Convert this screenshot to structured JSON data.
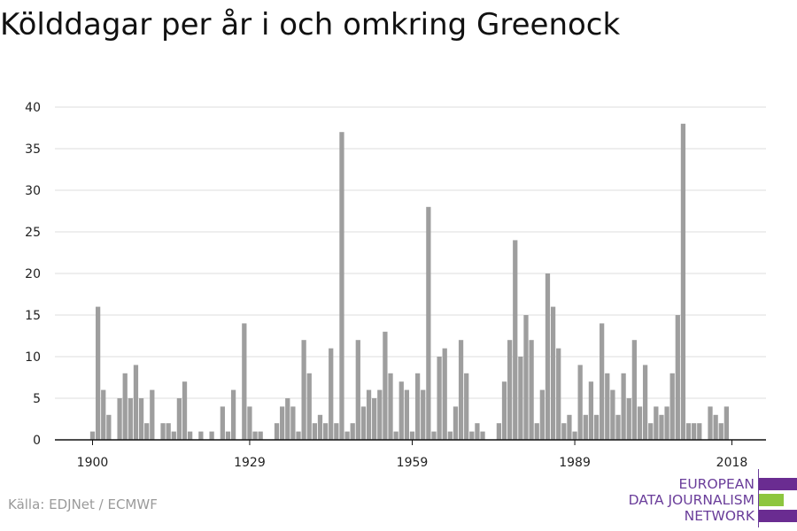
{
  "title": "Kölddagar per år i och omkring Greenock",
  "source": "Källa: EDJNet / ECMWF",
  "logo": {
    "lines": [
      "EUROPEAN",
      "DATA JOURNALISM",
      "NETWORK"
    ],
    "bar_colors": [
      "#6a2c91",
      "#8dc63f",
      "#6a2c91"
    ]
  },
  "colors": {
    "bar": "#9e9e9e",
    "grid": "#dddddd",
    "axis": "#111111",
    "text": "#222222"
  },
  "chart_data": {
    "type": "bar",
    "title": "Kölddagar per år i och omkring Greenock",
    "xlabel": "",
    "ylabel": "",
    "ylim": [
      0,
      40
    ],
    "yticks": [
      0,
      5,
      10,
      15,
      20,
      25,
      30,
      35,
      40
    ],
    "xticks": [
      1900,
      1929,
      1959,
      1989,
      2018
    ],
    "grid": true,
    "x": [
      1900,
      1901,
      1902,
      1903,
      1904,
      1905,
      1906,
      1907,
      1908,
      1909,
      1910,
      1911,
      1912,
      1913,
      1914,
      1915,
      1916,
      1917,
      1918,
      1919,
      1920,
      1921,
      1922,
      1923,
      1924,
      1925,
      1926,
      1927,
      1928,
      1929,
      1930,
      1931,
      1932,
      1933,
      1934,
      1935,
      1936,
      1937,
      1938,
      1939,
      1940,
      1941,
      1942,
      1943,
      1944,
      1945,
      1946,
      1947,
      1948,
      1949,
      1950,
      1951,
      1952,
      1953,
      1954,
      1955,
      1956,
      1957,
      1958,
      1959,
      1960,
      1961,
      1962,
      1963,
      1964,
      1965,
      1966,
      1967,
      1968,
      1969,
      1970,
      1971,
      1972,
      1973,
      1974,
      1975,
      1976,
      1977,
      1978,
      1979,
      1980,
      1981,
      1982,
      1983,
      1984,
      1985,
      1986,
      1987,
      1988,
      1989,
      1990,
      1991,
      1992,
      1993,
      1994,
      1995,
      1996,
      1997,
      1998,
      1999,
      2000,
      2001,
      2002,
      2003,
      2004,
      2005,
      2006,
      2007,
      2008,
      2009,
      2010,
      2011,
      2012,
      2013,
      2014,
      2015,
      2016,
      2017,
      2018
    ],
    "values": [
      1,
      16,
      6,
      3,
      0,
      5,
      8,
      5,
      9,
      5,
      2,
      6,
      0,
      2,
      2,
      1,
      5,
      7,
      1,
      0,
      1,
      0,
      1,
      0,
      4,
      1,
      6,
      0,
      14,
      4,
      1,
      1,
      0,
      0,
      2,
      4,
      5,
      4,
      1,
      12,
      8,
      2,
      3,
      2,
      11,
      2,
      37,
      1,
      2,
      12,
      4,
      6,
      5,
      6,
      13,
      8,
      1,
      7,
      6,
      1,
      8,
      6,
      28,
      1,
      10,
      11,
      1,
      4,
      12,
      8,
      1,
      2,
      1,
      0,
      0,
      2,
      7,
      12,
      24,
      10,
      15,
      12,
      2,
      6,
      20,
      16,
      11,
      2,
      3,
      1,
      9,
      3,
      7,
      3,
      14,
      8,
      6,
      3,
      8,
      5,
      12,
      4,
      9,
      2,
      4,
      3,
      4,
      8,
      15,
      38,
      2,
      2,
      2,
      0,
      4,
      3,
      2,
      4,
      0
    ]
  }
}
